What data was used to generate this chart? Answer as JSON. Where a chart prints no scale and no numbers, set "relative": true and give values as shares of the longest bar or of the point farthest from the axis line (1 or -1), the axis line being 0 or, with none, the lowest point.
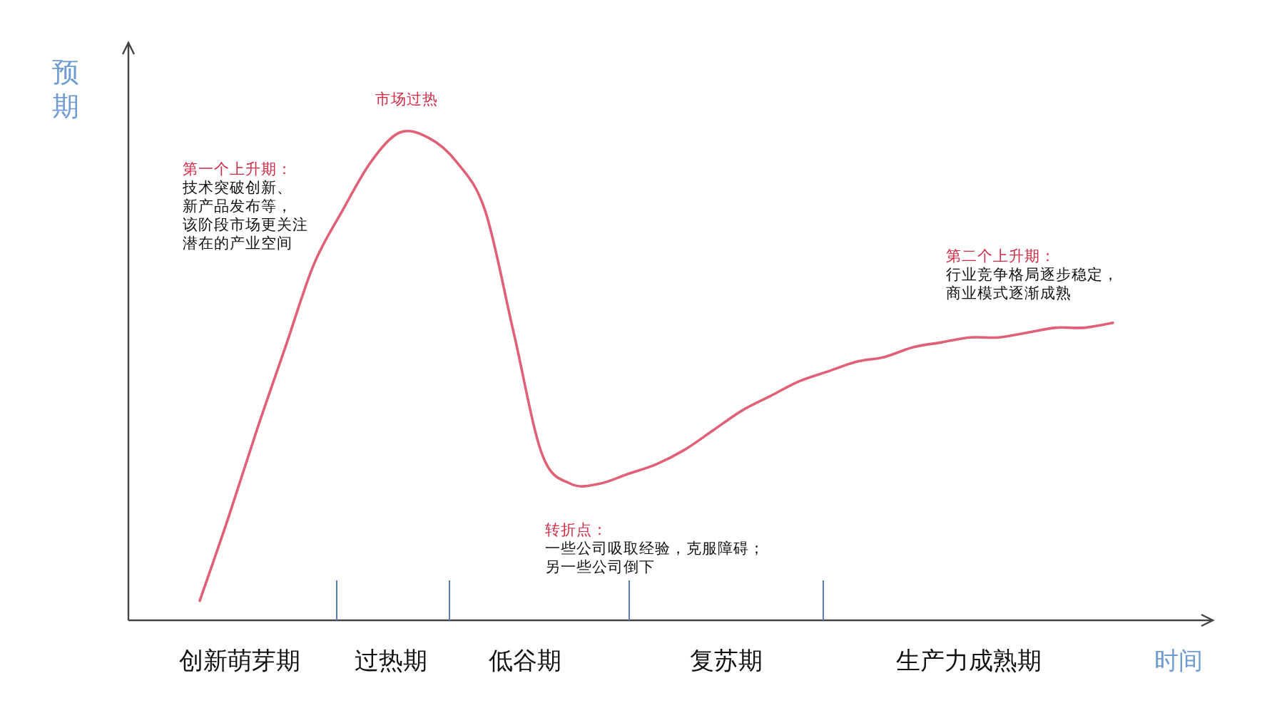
{
  "chart_data": {
    "type": "line",
    "relative": true,
    "xlabel": "时间",
    "ylabel": "预期",
    "categories": [
      null,
      null,
      null,
      null,
      null,
      null,
      null,
      null,
      null,
      null,
      null,
      null,
      null,
      null,
      null,
      null,
      null,
      null,
      null,
      null,
      null,
      null,
      null,
      null,
      null,
      null,
      null,
      null,
      null,
      null,
      null,
      null,
      null
    ],
    "series": [
      {
        "color": "#e06077",
        "values": [
          0.04,
          0.21,
          0.39,
          0.56,
          0.73,
          0.84,
          0.94,
          1.0,
          0.99,
          0.94,
          0.84,
          0.59,
          0.34,
          0.28,
          0.28,
          0.3,
          0.32,
          0.35,
          0.39,
          0.43,
          0.46,
          0.49,
          0.51,
          0.53,
          0.54,
          0.56,
          0.57,
          0.58,
          0.58,
          0.59,
          0.6,
          0.6,
          0.61
        ]
      }
    ],
    "annotations": [
      "市场过热",
      "第一个上升期：",
      "技术突破创新、",
      "新产品发布等，",
      "该阶段市场更关注",
      "潜在的产业空间",
      "第二个上升期：",
      "行业竞争格局逐步稳定，",
      "商业模式逐渐成熟",
      "转折点：",
      "一些公司吸取经验，克服障碍；",
      "另一些公司倒下",
      "创新萌芽期",
      "过热期",
      "低谷期",
      "复苏期",
      "生产力成熟期"
    ]
  }
}
